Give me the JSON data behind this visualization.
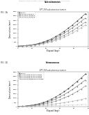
{
  "fig_label_1": "FIG. 1A",
  "fig_label_2": "FIG. 1B",
  "chart1": {
    "title": "Subcutaneous",
    "subtitle": "EFT-158 subcutaneous tumors",
    "xlabel": "Elapsed (days)",
    "ylabel": "Tumor volume (mm³)",
    "ylim": [
      0,
      4000
    ],
    "xlim": [
      0,
      50
    ],
    "yticks": [
      0,
      500,
      1000,
      1500,
      2000,
      2500,
      3000,
      3500,
      4000
    ],
    "xticks": [
      0,
      10,
      20,
      30,
      40,
      50
    ],
    "series": [
      {
        "label": "Controls",
        "color": "#333333",
        "marker": "s",
        "x": [
          0,
          3,
          6,
          9,
          12,
          15,
          18,
          21,
          24,
          27,
          30,
          33,
          36,
          39,
          42,
          45,
          48
        ],
        "y": [
          50,
          80,
          120,
          180,
          260,
          370,
          510,
          690,
          900,
          1150,
          1430,
          1750,
          2100,
          2480,
          2890,
          3300,
          3750
        ]
      },
      {
        "label": "Gemcitabine 60mg/kg",
        "color": "#555555",
        "marker": "^",
        "x": [
          0,
          3,
          6,
          9,
          12,
          15,
          18,
          21,
          24,
          27,
          30,
          33,
          36,
          39,
          42,
          45,
          48
        ],
        "y": [
          50,
          75,
          110,
          160,
          230,
          330,
          450,
          610,
          790,
          1010,
          1260,
          1540,
          1840,
          2170,
          2520,
          2880,
          3250
        ]
      },
      {
        "label": "Gemcitabine 120mg/kg",
        "color": "#777777",
        "marker": "o",
        "x": [
          0,
          3,
          6,
          9,
          12,
          15,
          18,
          21,
          24,
          27,
          30,
          33,
          36,
          39,
          42,
          45,
          48
        ],
        "y": [
          50,
          70,
          100,
          140,
          200,
          280,
          380,
          510,
          660,
          840,
          1050,
          1290,
          1550,
          1830,
          2130,
          2450,
          2790
        ]
      },
      {
        "label": "Gemcitabine 240mg/kg",
        "color": "#aaaaaa",
        "marker": "D",
        "x": [
          0,
          3,
          6,
          9,
          12,
          15,
          18,
          21,
          24,
          27,
          30,
          33,
          36,
          39,
          42,
          45,
          48
        ],
        "y": [
          50,
          65,
          90,
          125,
          175,
          240,
          325,
          430,
          560,
          710,
          890,
          1090,
          1320,
          1570,
          1850,
          2150,
          2480
        ]
      }
    ]
  },
  "chart2": {
    "title": "Intravenous",
    "subtitle": "EFT-158 subcutaneous tumors",
    "xlabel": "Elapsed (days)",
    "ylabel": "Tumor volume (mm³)",
    "ylim": [
      0,
      4000
    ],
    "xlim": [
      0,
      50
    ],
    "yticks": [
      0,
      500,
      1000,
      1500,
      2000,
      2500,
      3000,
      3500,
      4000
    ],
    "xticks": [
      0,
      10,
      20,
      30,
      40,
      50
    ],
    "series": [
      {
        "label": "Controls",
        "color": "#333333",
        "marker": "s",
        "x": [
          0,
          3,
          6,
          9,
          12,
          15,
          18,
          21,
          24,
          27,
          30,
          33,
          36,
          39,
          42,
          45,
          48
        ],
        "y": [
          50,
          80,
          120,
          180,
          260,
          370,
          510,
          690,
          900,
          1150,
          1430,
          1750,
          2100,
          2480,
          2890,
          3300,
          3750
        ]
      },
      {
        "label": "POZ-Gem 20mg/kg equiv. 20mg/kg",
        "color": "#555555",
        "marker": "^",
        "x": [
          0,
          3,
          6,
          9,
          12,
          15,
          18,
          21,
          24,
          27,
          30,
          33,
          36,
          39,
          42,
          45,
          48
        ],
        "y": [
          50,
          75,
          108,
          155,
          220,
          310,
          420,
          565,
          730,
          930,
          1160,
          1420,
          1700,
          2010,
          2350,
          2710,
          3080
        ]
      },
      {
        "label": "POZ-Gem 40mg/kg equiv. 40mg/kg",
        "color": "#777777",
        "marker": "o",
        "x": [
          0,
          3,
          6,
          9,
          12,
          15,
          18,
          21,
          24,
          27,
          30,
          33,
          36,
          39,
          42,
          45,
          48
        ],
        "y": [
          50,
          68,
          95,
          130,
          175,
          240,
          320,
          420,
          540,
          680,
          840,
          1030,
          1240,
          1480,
          1750,
          2050,
          2380
        ]
      },
      {
        "label": "POZ-Gem 80mg/kg equiv. 80mg/kg",
        "color": "#aaaaaa",
        "marker": "D",
        "x": [
          0,
          3,
          6,
          9,
          12,
          15,
          18,
          21,
          24,
          27,
          30,
          33,
          36,
          39,
          42,
          45,
          48
        ],
        "y": [
          50,
          62,
          80,
          105,
          135,
          170,
          210,
          255,
          305,
          360,
          420,
          490,
          565,
          648,
          740,
          840,
          950
        ]
      },
      {
        "label": "POZ-Gem 160mg/kg equiv. 160mg/kg",
        "color": "#cccccc",
        "marker": "v",
        "x": [
          0,
          3,
          6,
          9,
          12,
          15,
          18,
          21,
          24,
          27,
          30,
          33,
          36,
          39,
          42,
          45,
          48
        ],
        "y": [
          50,
          56,
          65,
          76,
          89,
          103,
          118,
          133,
          149,
          165,
          182,
          199,
          216,
          234,
          252,
          271,
          290
        ]
      }
    ]
  },
  "background_color": "#ffffff",
  "header_text": "Patent Application Publication    Nov. 00, 0000    Sheet 0 of 0    US 0,000,000,000 B2"
}
